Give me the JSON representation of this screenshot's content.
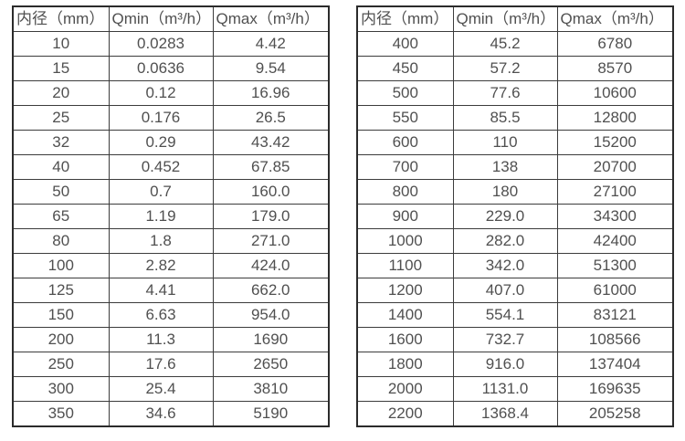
{
  "page": {
    "background": "#ffffff",
    "text_color": "#505050",
    "border_color": "#2b2b2b"
  },
  "tables": [
    {
      "name": "flow-table-small-diameters",
      "headers": [
        "内径（mm）",
        "Qmin（m³/h）",
        "Qmax（m³/h）"
      ],
      "rows": [
        [
          "10",
          "0.0283",
          "4.42"
        ],
        [
          "15",
          "0.0636",
          "9.54"
        ],
        [
          "20",
          "0.12",
          "16.96"
        ],
        [
          "25",
          "0.176",
          "26.5"
        ],
        [
          "32",
          "0.29",
          "43.42"
        ],
        [
          "40",
          "0.452",
          "67.85"
        ],
        [
          "50",
          "0.7",
          "160.0"
        ],
        [
          "65",
          "1.19",
          "179.0"
        ],
        [
          "80",
          "1.8",
          "271.0"
        ],
        [
          "100",
          "2.82",
          "424.0"
        ],
        [
          "125",
          "4.41",
          "662.0"
        ],
        [
          "150",
          "6.63",
          "954.0"
        ],
        [
          "200",
          "11.3",
          "1690"
        ],
        [
          "250",
          "17.6",
          "2650"
        ],
        [
          "300",
          "25.4",
          "3810"
        ],
        [
          "350",
          "34.6",
          "5190"
        ]
      ]
    },
    {
      "name": "flow-table-large-diameters",
      "headers": [
        "内径（mm）",
        "Qmin（m³/h）",
        "Qmax（m³/h）"
      ],
      "rows": [
        [
          "400",
          "45.2",
          "6780"
        ],
        [
          "450",
          "57.2",
          "8570"
        ],
        [
          "500",
          "77.6",
          "10600"
        ],
        [
          "550",
          "85.5",
          "12800"
        ],
        [
          "600",
          "110",
          "15200"
        ],
        [
          "700",
          "138",
          "20700"
        ],
        [
          "800",
          "180",
          "27100"
        ],
        [
          "900",
          "229.0",
          "34300"
        ],
        [
          "1000",
          "282.0",
          "42400"
        ],
        [
          "1100",
          "342.0",
          "51300"
        ],
        [
          "1200",
          "407.0",
          "61000"
        ],
        [
          "1400",
          "554.1",
          "83121"
        ],
        [
          "1600",
          "732.7",
          "108566"
        ],
        [
          "1800",
          "916.0",
          "137404"
        ],
        [
          "2000",
          "1131.0",
          "169635"
        ],
        [
          "2200",
          "1368.4",
          "205258"
        ]
      ]
    }
  ]
}
